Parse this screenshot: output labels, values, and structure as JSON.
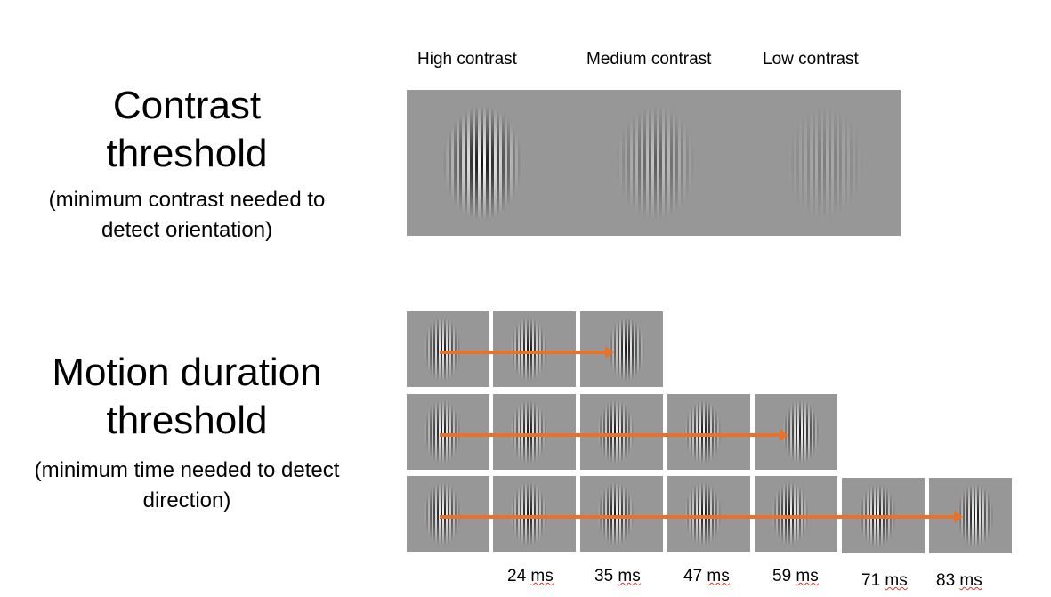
{
  "contrast": {
    "title": "Contrast threshold",
    "subtitle": "(minimum contrast needed to detect orientation)",
    "labels": [
      "High contrast",
      "Medium contrast",
      "Low contrast"
    ]
  },
  "motion": {
    "title": "Motion duration threshold",
    "subtitle": "(minimum time needed to detect direction)",
    "durations": [
      {
        "n": "24",
        "u": "ms"
      },
      {
        "n": "35",
        "u": "ms"
      },
      {
        "n": "47",
        "u": "ms"
      },
      {
        "n": "59",
        "u": "ms"
      },
      {
        "n": "71",
        "u": "ms"
      },
      {
        "n": "83",
        "u": "ms"
      }
    ],
    "rows_frame_counts": [
      3,
      5,
      7
    ]
  },
  "colors": {
    "arrow": "#e8722a",
    "stimulus_bg": "#979797"
  }
}
